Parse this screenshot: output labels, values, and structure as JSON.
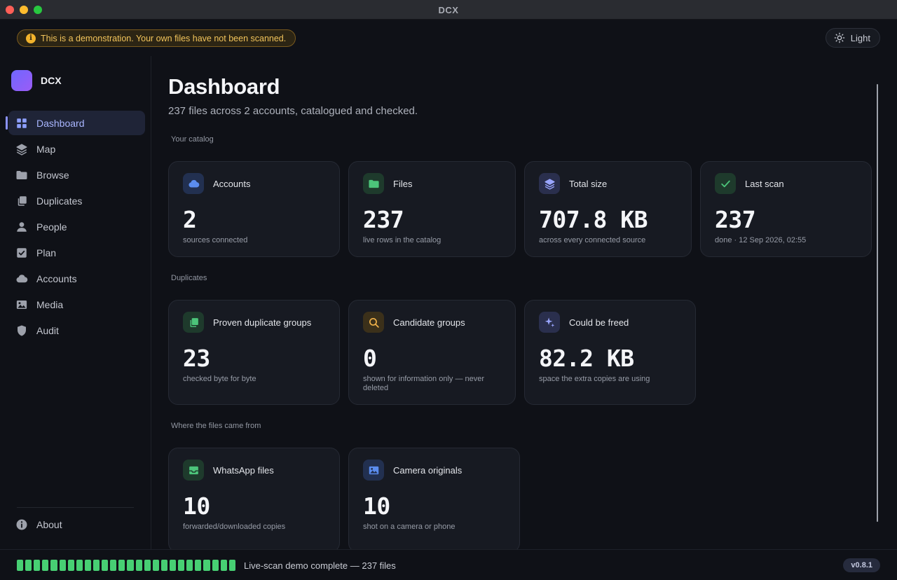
{
  "window": {
    "title": "DCX"
  },
  "topbar": {
    "demo_notice": "This is a demonstration. Your own files have not been scanned.",
    "theme_label": "Light"
  },
  "sidebar": {
    "brand": "DCX",
    "items": [
      {
        "label": "Dashboard",
        "icon": "grid-icon",
        "active": true
      },
      {
        "label": "Map",
        "icon": "layers-icon"
      },
      {
        "label": "Browse",
        "icon": "folder-icon"
      },
      {
        "label": "Duplicates",
        "icon": "copy-icon"
      },
      {
        "label": "People",
        "icon": "person-icon"
      },
      {
        "label": "Plan",
        "icon": "checkbox-icon"
      },
      {
        "label": "Accounts",
        "icon": "cloud-icon"
      },
      {
        "label": "Media",
        "icon": "image-icon"
      },
      {
        "label": "Audit",
        "icon": "shield-icon"
      }
    ],
    "about_label": "About"
  },
  "main": {
    "title": "Dashboard",
    "subtitle": "237 files across 2 accounts, catalogued and checked.",
    "sections": [
      {
        "label": "Your catalog",
        "cards": [
          {
            "label": "Accounts",
            "value": "2",
            "note": "sources connected",
            "icon": "cloud-icon",
            "accent": "#5b8def"
          },
          {
            "label": "Files",
            "value": "237",
            "note": "live rows in the catalog",
            "icon": "folder-icon",
            "accent": "#4cc47a"
          },
          {
            "label": "Total size",
            "value": "707.8 KB",
            "note": "across every connected source",
            "icon": "layers-icon",
            "accent": "#9aa6ff"
          },
          {
            "label": "Last scan",
            "value": "237",
            "note": "done · 12 Sep 2026, 02:55",
            "icon": "check-icon",
            "accent": "#4cc47a"
          }
        ]
      },
      {
        "label": "Duplicates",
        "cards": [
          {
            "label": "Proven duplicate groups",
            "value": "23",
            "note": "checked byte for byte",
            "icon": "copy-icon",
            "accent": "#4cc47a"
          },
          {
            "label": "Candidate groups",
            "value": "0",
            "note": "shown for information only — never deleted",
            "icon": "search-icon",
            "accent": "#f0b14a"
          },
          {
            "label": "Could be freed",
            "value": "82.2 KB",
            "note": "space the extra copies are using",
            "icon": "sparkle-icon",
            "accent": "#9aa6ff"
          }
        ]
      },
      {
        "label": "Where the files came from",
        "cards": [
          {
            "label": "WhatsApp files",
            "value": "10",
            "note": "forwarded/downloaded copies",
            "icon": "inbox-icon",
            "accent": "#4cc47a"
          },
          {
            "label": "Camera originals",
            "value": "10",
            "note": "shot on a camera or phone",
            "icon": "image-icon",
            "accent": "#5b8def"
          }
        ]
      }
    ]
  },
  "statusbar": {
    "progress": 1.0,
    "text": "Live-scan demo complete — 237 files",
    "version": "v0.8.1"
  }
}
